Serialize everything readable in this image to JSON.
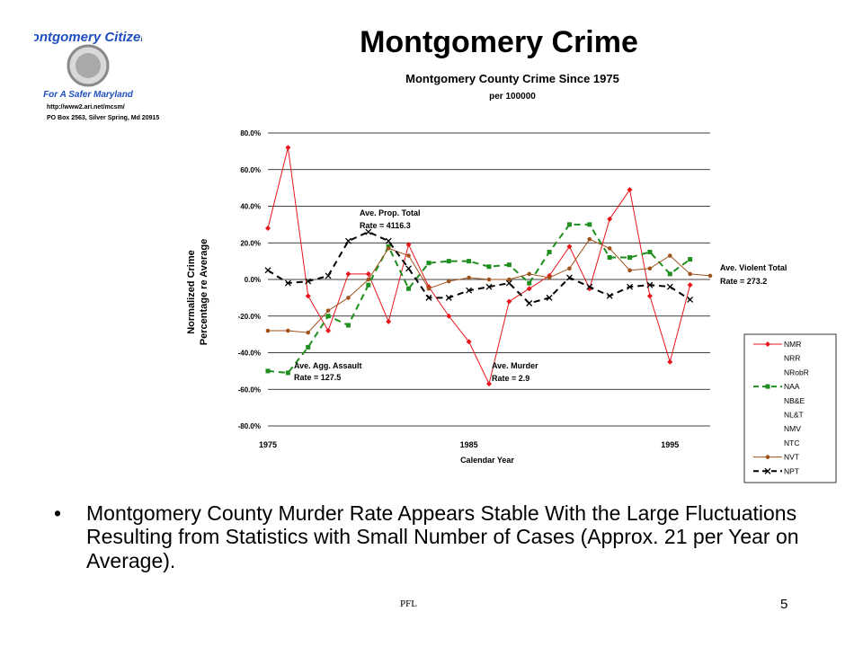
{
  "slide": {
    "title": "Montgomery Crime",
    "bullet": "Montgomery County Murder Rate Appears Stable With the Large Fluctuations Resulting from Statistics with Small Number of Cases (Approx. 21 per Year on Average).",
    "footer": "PFL",
    "page_number": "5"
  },
  "logo": {
    "name_text": "Montgomery Citizens",
    "tagline": "For A Safer Maryland",
    "url": "http://www2.ari.net/mcsm/",
    "address": "PO Box 2563, Silver Spring, Md 20915",
    "colors": {
      "text": "#1f4fbf",
      "seal": "#8a8a8a"
    }
  },
  "chart_data": {
    "type": "line",
    "title": "Montgomery  County  Crime  Since  1975",
    "subtitle": "per 100000",
    "xlabel": "Calendar Year",
    "ylabel_line1": "Normalized Crime",
    "ylabel_line2": "Percentage re Average",
    "ylim": [
      -80,
      80
    ],
    "yticks": [
      80,
      60,
      40,
      20,
      0,
      -20,
      -40,
      -60,
      -80
    ],
    "ytick_labels": [
      "80.0%",
      "60.0%",
      "40.0%",
      "20.0%",
      "0.0%",
      "-20.0%",
      "-40.0%",
      "-60.0%",
      "-80.0%"
    ],
    "xlim": [
      1975,
      1997
    ],
    "xticks": [
      1975,
      1985,
      1995
    ],
    "xtick_labels": [
      "1975",
      "1985",
      "1995"
    ],
    "grid": "horizontal",
    "legend_position": "bottom-right",
    "legend": [
      "NMR",
      "NRR",
      "NRobR",
      "NAA",
      "NB&E",
      "NL&T",
      "NMV",
      "NTC",
      "NVT",
      "NPT"
    ],
    "x": [
      1975,
      1976,
      1977,
      1978,
      1979,
      1980,
      1981,
      1982,
      1983,
      1984,
      1985,
      1986,
      1987,
      1988,
      1989,
      1990,
      1991,
      1992,
      1993,
      1994,
      1995,
      1996,
      1997
    ],
    "series": [
      {
        "name": "NMR",
        "color": "#e8151b",
        "style": "solid",
        "marker": "diamond",
        "values": [
          28,
          72,
          -9,
          -28,
          3,
          3,
          -23,
          19,
          -4,
          -20,
          -34,
          -57,
          -12,
          -5,
          2,
          18,
          -5,
          33,
          49,
          -9,
          -45,
          -3,
          null
        ]
      },
      {
        "name": "NAA",
        "color": "#1e8f1e",
        "style": "dashed",
        "marker": "square",
        "values": [
          -50,
          -51,
          -37,
          -20,
          -25,
          -3,
          18,
          -5,
          9,
          10,
          10,
          7,
          8,
          -2,
          15,
          30,
          30,
          12,
          12,
          15,
          3,
          11,
          null
        ]
      },
      {
        "name": "NVT",
        "color": "#a0521d",
        "style": "solid",
        "marker": "circle",
        "values": [
          -28,
          -28,
          -29,
          -17,
          -10,
          0,
          17,
          13,
          -5,
          -1,
          1,
          0,
          0,
          3,
          1,
          6,
          22,
          17,
          5,
          6,
          13,
          3,
          2
        ]
      },
      {
        "name": "NPT",
        "color": "#000000",
        "style": "dashed",
        "marker": "x",
        "values": [
          5,
          -2,
          -1,
          2,
          21,
          26,
          21,
          6,
          -10,
          -10,
          -6,
          -4,
          -2,
          -13,
          -10,
          1,
          -4,
          -9,
          -4,
          -3,
          -4,
          -11,
          null
        ]
      }
    ],
    "annotations": [
      {
        "line1": "Ave. Prop. Total",
        "line2": "Rate = 4116.3",
        "color": "#000000"
      },
      {
        "line1": "Ave. Violent Total",
        "line2": "Rate = 273.2",
        "color": "#9b1c1c"
      },
      {
        "line1": "Ave. Agg. Assault",
        "line2": "Rate  = 127.5",
        "color": "#1e8f1e"
      },
      {
        "line1": "Ave. Murder",
        "line2": "Rate = 2.9",
        "color": "#e8151b"
      }
    ]
  }
}
